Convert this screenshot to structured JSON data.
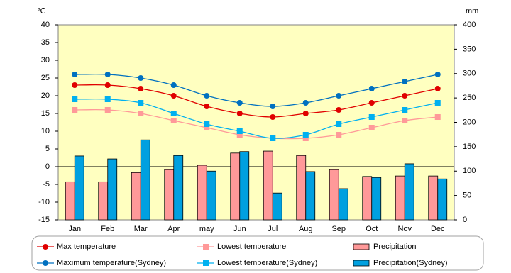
{
  "chart_data": {
    "type": "combo",
    "y_unit": "℃",
    "y2_unit": "mm",
    "categories": [
      "Jan",
      "Feb",
      "Mar",
      "Apr",
      "may",
      "Jun",
      "Jul",
      "Aug",
      "Sep",
      "Oct",
      "Nov",
      "Dec"
    ],
    "ylim": [
      -15,
      40
    ],
    "yticks": [
      -15,
      -10,
      -5,
      0,
      5,
      10,
      15,
      20,
      25,
      30,
      35,
      40
    ],
    "y2lim": [
      0,
      400
    ],
    "y2ticks": [
      0,
      50,
      100,
      150,
      200,
      250,
      300,
      350,
      400
    ],
    "series": [
      {
        "name": "Max temperature",
        "type": "line",
        "marker": "circle",
        "color": "#e00000",
        "values": [
          23,
          23,
          22,
          20,
          17,
          15,
          14,
          15,
          16,
          18,
          20,
          22
        ]
      },
      {
        "name": "Lowest temperature",
        "type": "line",
        "marker": "square",
        "color": "#ff9999",
        "values": [
          16,
          16,
          15,
          13,
          11,
          9,
          8,
          8,
          9,
          11,
          13,
          14
        ]
      },
      {
        "name": "Precipitation",
        "type": "bar",
        "axis": "y2",
        "color": "#ff9999",
        "values": [
          78,
          78,
          97,
          103,
          112,
          137,
          141,
          132,
          103,
          89,
          90,
          90
        ]
      },
      {
        "name": "Maximum temperature(Sydney)",
        "type": "line",
        "marker": "circle",
        "color": "#0070c0",
        "values": [
          26,
          26,
          25,
          23,
          20,
          18,
          17,
          18,
          20,
          22,
          24,
          26
        ]
      },
      {
        "name": "Lowest temperature(Sydney)",
        "type": "line",
        "marker": "square",
        "color": "#00b0f0",
        "values": [
          19,
          19,
          18,
          15,
          12,
          10,
          8,
          9,
          12,
          14,
          16,
          18
        ]
      },
      {
        "name": "Precipitation(Sydney)",
        "type": "bar",
        "axis": "y2",
        "color": "#00a0e0",
        "values": [
          131,
          125,
          164,
          132,
          100,
          140,
          55,
          99,
          64,
          87,
          115,
          84
        ]
      }
    ]
  }
}
